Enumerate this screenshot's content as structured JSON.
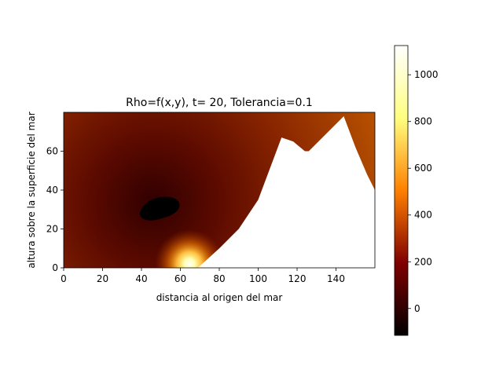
{
  "chart_data": {
    "type": "heatmap",
    "title": "Rho=f(x,y), t= 20, Tolerancia=0.1",
    "xlabel": "distancia al origen del mar",
    "ylabel": "altura sobre la superficie del mar",
    "xlim": [
      0,
      160
    ],
    "ylim": [
      0,
      80
    ],
    "x_ticks": [
      "0",
      "20",
      "40",
      "60",
      "80",
      "100",
      "120",
      "140"
    ],
    "y_ticks": [
      "0",
      "20",
      "40",
      "60"
    ],
    "colormap": "afmhot",
    "colorbar": {
      "min": -115,
      "max": 1125,
      "tick_values": [
        0,
        200,
        400,
        600,
        800,
        1000
      ],
      "tick_labels": [
        "0",
        "200",
        "400",
        "600",
        "800",
        "1000"
      ]
    },
    "mountain_profile": [
      [
        69,
        0
      ],
      [
        80,
        10
      ],
      [
        90,
        20
      ],
      [
        100,
        35
      ],
      [
        112,
        67
      ],
      [
        118,
        65
      ],
      [
        124,
        60
      ],
      [
        126,
        60
      ],
      [
        144,
        78
      ],
      [
        150,
        62
      ],
      [
        156,
        48
      ],
      [
        160,
        40
      ]
    ],
    "features": {
      "dense_blob": {
        "center": [
          50,
          30
        ],
        "value": -115
      },
      "hot_spot": {
        "center": [
          65,
          2
        ],
        "value": 1125
      }
    }
  },
  "colors": {
    "background": "#ffffff",
    "axes": "#000000",
    "terrain": "#ffffff"
  }
}
